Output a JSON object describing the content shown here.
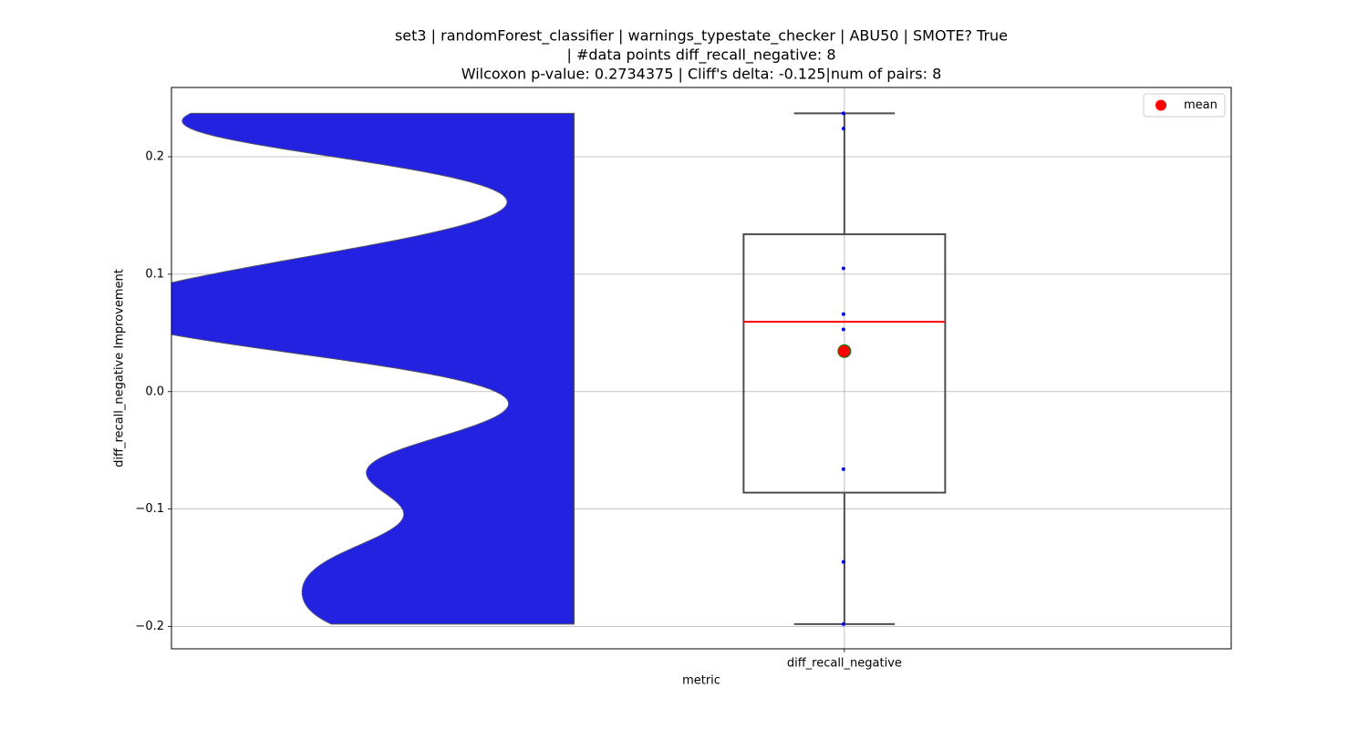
{
  "chart_data": {
    "type": "violin_box",
    "title": [
      "set3 | randomForest_classifier | warnings_typestate_checker | ABU50 | SMOTE? True",
      "| #data points diff_recall_negative: 8",
      "Wilcoxon p-value: 0.2734375 | Cliff's delta: -0.125|num of pairs: 8"
    ],
    "x_label": "metric",
    "y_label": "diff_recall_negative Improvement",
    "categories": [
      "diff_recall_negative"
    ],
    "values": [
      0.237,
      0.224,
      0.105,
      0.066,
      0.053,
      -0.066,
      -0.145,
      -0.198
    ],
    "box": {
      "q1": -0.086,
      "median": 0.0595,
      "q3": 0.134,
      "whisker_low": -0.198,
      "whisker_high": 0.237
    },
    "mean": 0.0345,
    "mean_label": "mean",
    "ylim": [
      -0.219,
      0.259
    ],
    "yticks": [
      {
        "value": -0.2,
        "label": "−0.2"
      },
      {
        "value": -0.1,
        "label": "−0.1"
      },
      {
        "value": 0,
        "label": "0.0"
      },
      0.1,
      0.2
    ],
    "grid": true,
    "legend": "upper right",
    "colors": {
      "violin": "#2222e0",
      "points": "#0000ff",
      "median": "#ff0000",
      "mean": "#ff0000",
      "mean_edge": "#008000",
      "box": "#4d4d4d"
    }
  }
}
